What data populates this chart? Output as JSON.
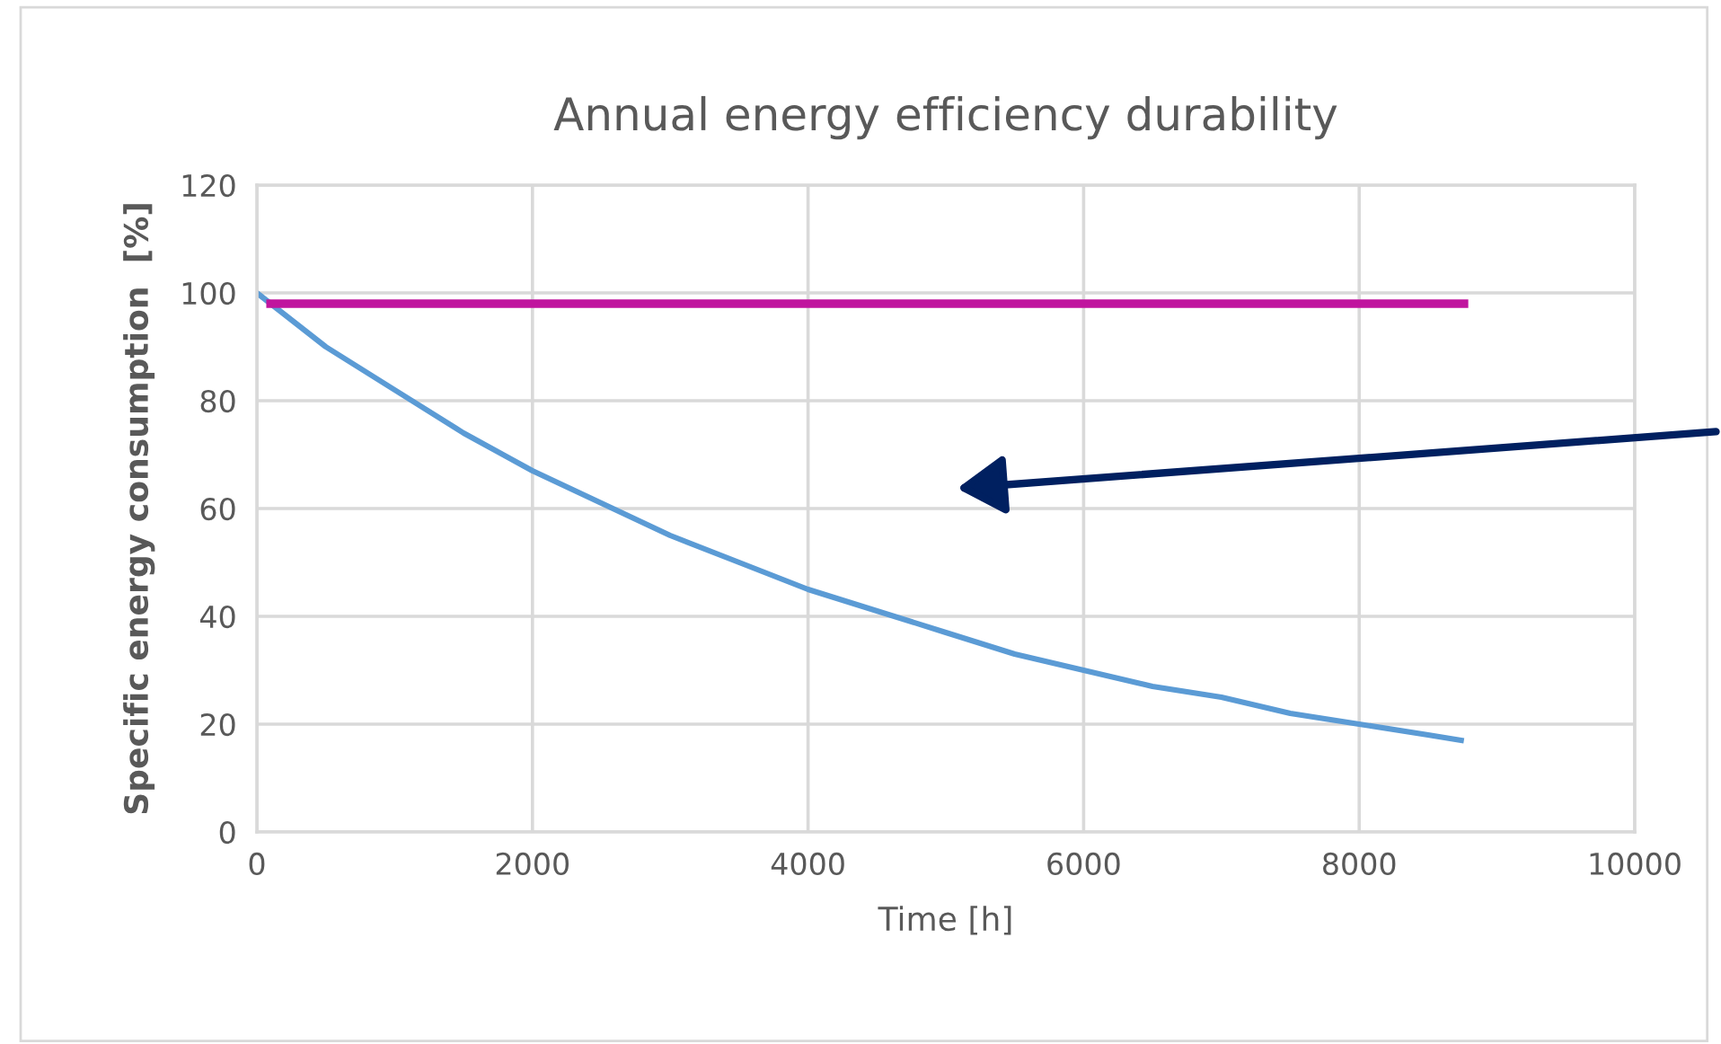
{
  "chart_data": {
    "type": "line",
    "title": "Annual energy efficiency durability",
    "xlabel": "Time [h]",
    "ylabel": "Specific energy consumption  [%]",
    "series": [
      {
        "color": "#5b9bd5",
        "x": [
          0,
          500,
          1000,
          1500,
          2000,
          2500,
          3000,
          3500,
          4000,
          4500,
          5000,
          5500,
          6000,
          6500,
          7000,
          7500,
          8000,
          8500,
          8740
        ],
        "values": [
          100,
          90,
          82,
          74,
          67,
          61,
          55,
          50,
          45,
          41,
          37,
          33,
          30,
          27,
          25,
          22,
          20,
          18,
          17
        ]
      },
      {
        "color": "#c0149e",
        "x": [
          100,
          8760
        ],
        "values": [
          98,
          98
        ]
      }
    ],
    "xlim": [
      0,
      10000
    ],
    "xticks": [
      0,
      2000,
      4000,
      6000,
      8000,
      10000
    ],
    "ylim": [
      0,
      120
    ],
    "yticks": [
      0,
      20,
      40,
      60,
      80,
      100,
      120
    ],
    "grid": true,
    "legend": false,
    "marker": "none",
    "line_style": "solid"
  }
}
